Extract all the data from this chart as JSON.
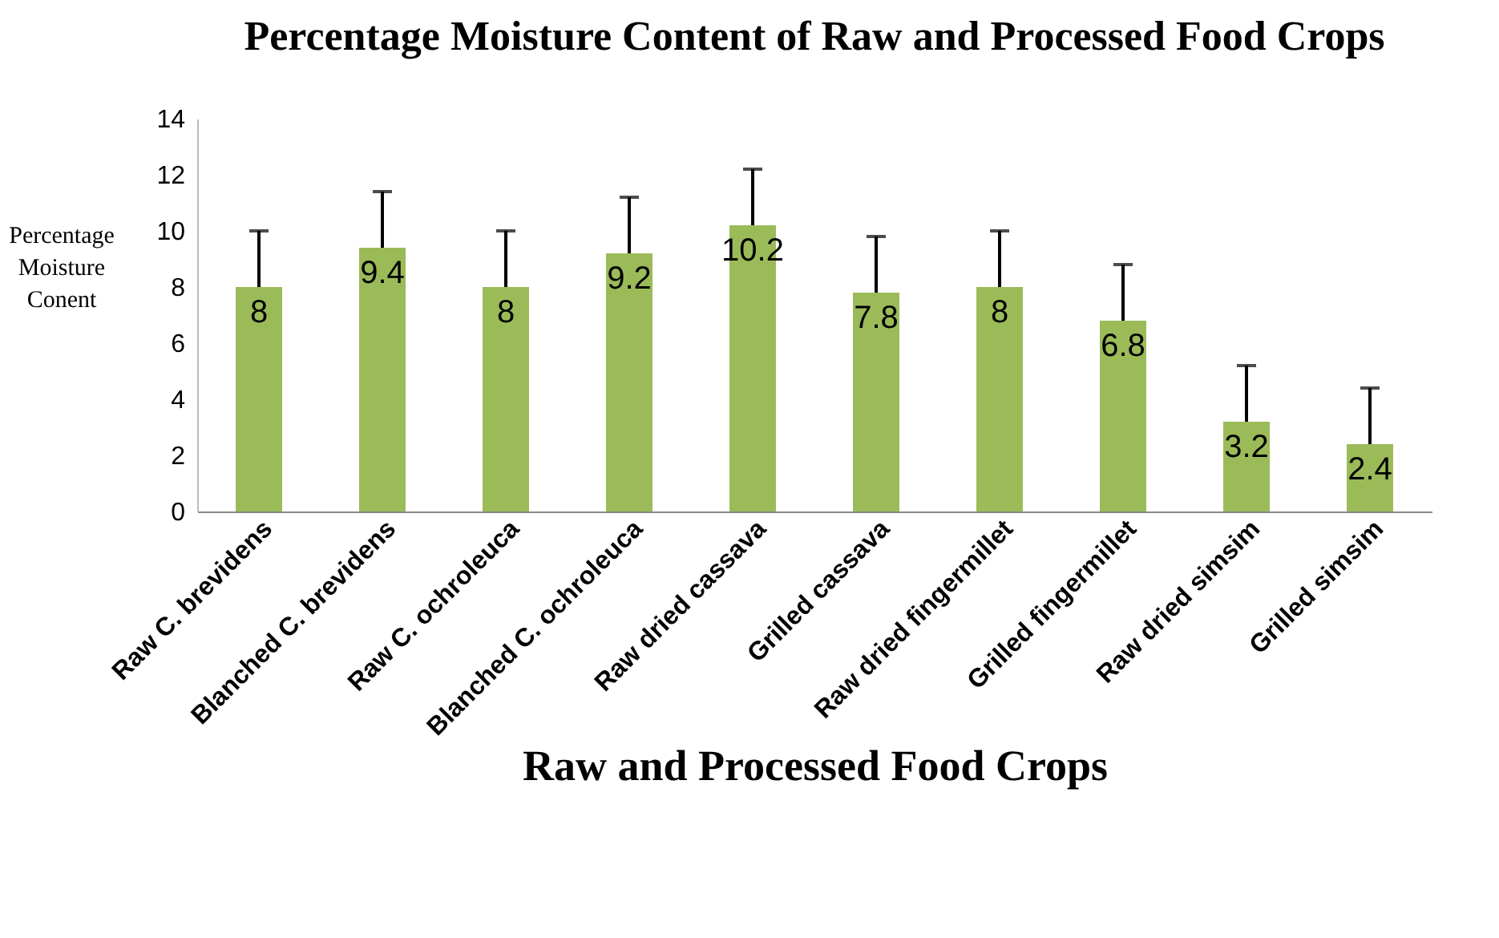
{
  "chart_data": {
    "type": "bar",
    "title": "Percentage Moisture Content of Raw and Processed Food  Crops",
    "xlabel": "Raw and Processed Food Crops",
    "ylabel": "Percentage Moisture Conent",
    "categories": [
      "Raw C. brevidens",
      "Blanched C. brevidens",
      "Raw C. ochroleuca",
      "Blanched C. ochroleuca",
      "Raw dried cassava",
      "Grilled cassava",
      "Raw dried fingermillet",
      "Grilled fingermillet",
      "Raw dried simsim",
      "Grilled simsim"
    ],
    "values": [
      8,
      9.4,
      8,
      9.2,
      10.2,
      7.8,
      8,
      6.8,
      3.2,
      2.4
    ],
    "errors": [
      [
        8,
        10
      ],
      [
        9.4,
        11.4
      ],
      [
        8,
        10
      ],
      [
        9.2,
        11.2
      ],
      [
        10.2,
        12.2
      ],
      [
        7.8,
        9.8
      ],
      [
        8,
        10
      ],
      [
        6.8,
        8.8
      ],
      [
        3.2,
        5.2
      ],
      [
        2.4,
        4.4
      ]
    ],
    "color": "#9bbb59",
    "ylim": [
      0,
      14
    ],
    "yticks": [
      0,
      2,
      4,
      6,
      8,
      10,
      12,
      14
    ],
    "grid": false,
    "data_labels": true
  }
}
